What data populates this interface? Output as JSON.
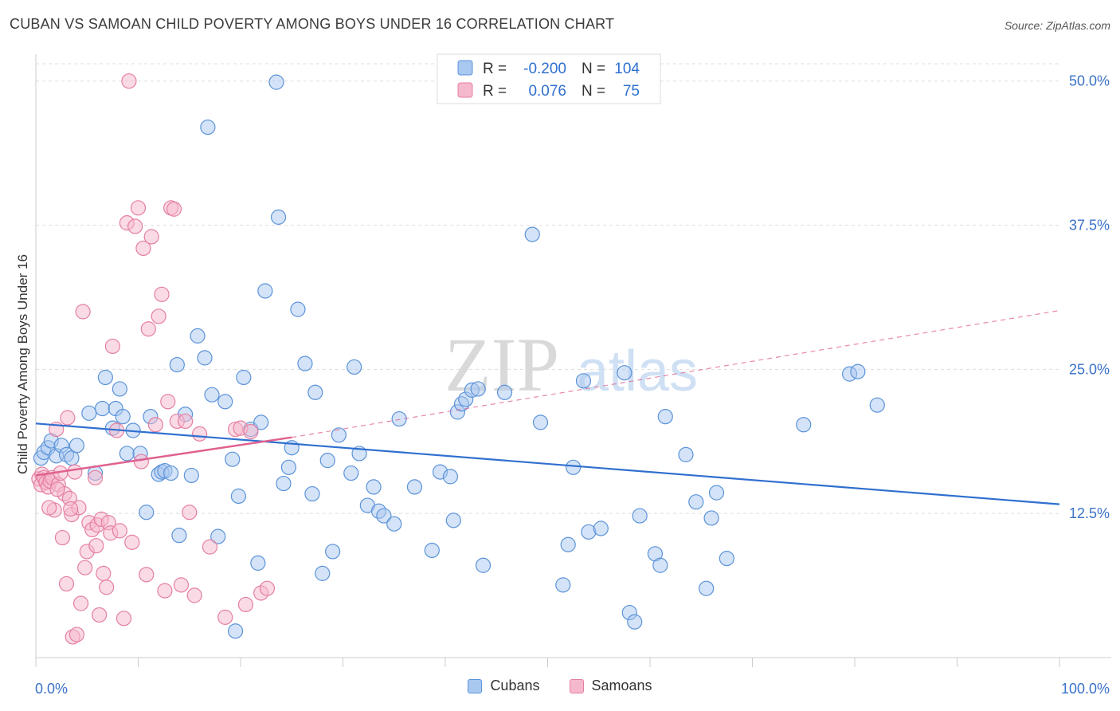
{
  "title": "CUBAN VS SAMOAN CHILD POVERTY AMONG BOYS UNDER 16 CORRELATION CHART",
  "source": "Source: ZipAtlas.com",
  "watermark": {
    "zip": "ZIP",
    "atlas": "atlas"
  },
  "colors": {
    "cubans_fill": "#a9c8f0",
    "cubans_stroke": "#5b93d9",
    "cubans_line": "#2f6fcf",
    "samoans_fill": "#f5b8cc",
    "samoans_stroke": "#e57fa2",
    "samoans_line": "#e0608f",
    "tick_label": "#3a72c8",
    "grid": "#dddddd"
  },
  "legend_top": {
    "rows": [
      {
        "r_label": "R =",
        "r_value": "-0.200",
        "n_label": "N =",
        "n_value": "104"
      },
      {
        "r_label": "R =",
        "r_value": "0.076",
        "n_label": "N =",
        "n_value": "75"
      }
    ]
  },
  "legend_bottom": {
    "cubans": "Cubans",
    "samoans": "Samoans"
  },
  "chart_data": {
    "type": "scatter",
    "title": "CUBAN VS SAMOAN CHILD POVERTY AMONG BOYS UNDER 16 CORRELATION CHART",
    "xlabel": "",
    "ylabel": "Child Poverty Among Boys Under 16",
    "xlim": [
      0,
      100
    ],
    "ylim": [
      0,
      51.5
    ],
    "x_tick_labels": [
      "0.0%",
      "100.0%"
    ],
    "y_ticks": [
      12.5,
      25.0,
      37.5,
      50.0
    ],
    "y_tick_labels": [
      "12.5%",
      "25.0%",
      "37.5%",
      "50.0%"
    ],
    "grid": true,
    "legend_position": "top-center",
    "series": [
      {
        "name": "Cubans",
        "r": -0.2,
        "n": 104,
        "trend": {
          "x": [
            0,
            100
          ],
          "y": [
            20.3,
            13.3
          ],
          "style": "solid"
        },
        "points": [
          [
            0.5,
            17.3
          ],
          [
            0.8,
            17.8
          ],
          [
            1.2,
            18.2
          ],
          [
            1.5,
            18.8
          ],
          [
            2.0,
            17.5
          ],
          [
            2.5,
            18.4
          ],
          [
            3.0,
            17.6
          ],
          [
            3.5,
            17.3
          ],
          [
            4.0,
            18.4
          ],
          [
            5.2,
            21.2
          ],
          [
            5.8,
            16.0
          ],
          [
            6.5,
            21.6
          ],
          [
            6.8,
            24.3
          ],
          [
            7.5,
            19.9
          ],
          [
            7.8,
            21.6
          ],
          [
            8.2,
            23.3
          ],
          [
            8.5,
            20.9
          ],
          [
            8.9,
            17.7
          ],
          [
            9.5,
            19.7
          ],
          [
            10.2,
            17.7
          ],
          [
            10.8,
            12.6
          ],
          [
            11.2,
            20.9
          ],
          [
            12.0,
            15.9
          ],
          [
            12.3,
            16.1
          ],
          [
            12.6,
            16.2
          ],
          [
            13.2,
            16.0
          ],
          [
            13.8,
            25.4
          ],
          [
            14.0,
            10.6
          ],
          [
            14.6,
            21.1
          ],
          [
            15.2,
            15.8
          ],
          [
            15.8,
            27.9
          ],
          [
            16.5,
            26.0
          ],
          [
            16.8,
            46.0
          ],
          [
            17.2,
            22.8
          ],
          [
            17.8,
            10.5
          ],
          [
            18.5,
            22.2
          ],
          [
            19.2,
            17.2
          ],
          [
            19.5,
            2.3
          ],
          [
            19.8,
            14.0
          ],
          [
            20.3,
            24.3
          ],
          [
            21.0,
            19.8
          ],
          [
            21.7,
            8.2
          ],
          [
            22.0,
            20.4
          ],
          [
            22.4,
            31.8
          ],
          [
            23.5,
            49.9
          ],
          [
            23.7,
            38.2
          ],
          [
            24.2,
            15.1
          ],
          [
            24.7,
            16.5
          ],
          [
            25.0,
            18.2
          ],
          [
            25.6,
            30.2
          ],
          [
            26.3,
            25.5
          ],
          [
            27.0,
            14.2
          ],
          [
            27.3,
            23.0
          ],
          [
            28.0,
            7.3
          ],
          [
            28.5,
            17.1
          ],
          [
            29.0,
            9.2
          ],
          [
            29.6,
            19.3
          ],
          [
            30.8,
            16.0
          ],
          [
            31.1,
            25.2
          ],
          [
            31.6,
            17.7
          ],
          [
            32.4,
            13.2
          ],
          [
            33.0,
            14.8
          ],
          [
            33.5,
            12.7
          ],
          [
            34.0,
            12.3
          ],
          [
            35.0,
            11.6
          ],
          [
            35.5,
            20.7
          ],
          [
            37.0,
            14.8
          ],
          [
            38.7,
            9.3
          ],
          [
            39.5,
            16.1
          ],
          [
            40.5,
            15.7
          ],
          [
            40.8,
            11.9
          ],
          [
            41.2,
            21.3
          ],
          [
            41.6,
            22.0
          ],
          [
            42.0,
            22.4
          ],
          [
            42.6,
            23.2
          ],
          [
            43.2,
            23.3
          ],
          [
            43.7,
            8.0
          ],
          [
            45.8,
            23.0
          ],
          [
            48.5,
            36.7
          ],
          [
            49.3,
            20.4
          ],
          [
            51.5,
            6.3
          ],
          [
            52.0,
            9.8
          ],
          [
            52.5,
            16.5
          ],
          [
            53.5,
            24.0
          ],
          [
            54.0,
            10.9
          ],
          [
            55.2,
            11.2
          ],
          [
            57.5,
            24.7
          ],
          [
            58.0,
            3.9
          ],
          [
            58.5,
            3.1
          ],
          [
            59.0,
            12.3
          ],
          [
            60.5,
            9.0
          ],
          [
            61.0,
            8.0
          ],
          [
            61.5,
            20.9
          ],
          [
            63.5,
            17.6
          ],
          [
            64.5,
            13.5
          ],
          [
            65.5,
            6.0
          ],
          [
            66.0,
            12.1
          ],
          [
            66.5,
            14.3
          ],
          [
            67.5,
            8.6
          ],
          [
            75.0,
            20.2
          ],
          [
            79.5,
            24.6
          ],
          [
            80.3,
            24.8
          ],
          [
            82.2,
            21.9
          ]
        ]
      },
      {
        "name": "Samoans",
        "r": 0.076,
        "n": 75,
        "trend": {
          "x": [
            0,
            25
          ],
          "y": [
            15.8,
            19.1
          ],
          "style": "solid",
          "extension": {
            "x": [
              25,
              100
            ],
            "y": [
              19.1,
              30.1
            ],
            "style": "dashed"
          }
        },
        "points": [
          [
            0.3,
            15.5
          ],
          [
            0.5,
            15.0
          ],
          [
            0.6,
            15.9
          ],
          [
            0.8,
            15.6
          ],
          [
            1.0,
            15.2
          ],
          [
            1.2,
            14.8
          ],
          [
            1.4,
            15.3
          ],
          [
            1.6,
            15.6
          ],
          [
            1.8,
            12.8
          ],
          [
            2.0,
            19.8
          ],
          [
            2.2,
            15.0
          ],
          [
            2.4,
            16.0
          ],
          [
            2.6,
            10.4
          ],
          [
            2.8,
            14.2
          ],
          [
            3.0,
            6.4
          ],
          [
            3.1,
            20.8
          ],
          [
            3.3,
            13.8
          ],
          [
            3.5,
            12.4
          ],
          [
            3.6,
            1.8
          ],
          [
            3.8,
            16.1
          ],
          [
            4.0,
            2.0
          ],
          [
            4.2,
            13.0
          ],
          [
            4.4,
            4.7
          ],
          [
            4.6,
            30.0
          ],
          [
            4.8,
            7.8
          ],
          [
            5.0,
            9.2
          ],
          [
            5.2,
            11.7
          ],
          [
            5.5,
            11.1
          ],
          [
            5.8,
            15.6
          ],
          [
            6.0,
            11.5
          ],
          [
            6.2,
            3.7
          ],
          [
            6.4,
            12.0
          ],
          [
            6.6,
            7.3
          ],
          [
            6.9,
            6.1
          ],
          [
            7.1,
            11.7
          ],
          [
            7.3,
            10.8
          ],
          [
            7.5,
            27.0
          ],
          [
            7.9,
            19.7
          ],
          [
            8.2,
            11.0
          ],
          [
            8.6,
            3.4
          ],
          [
            8.9,
            37.7
          ],
          [
            9.1,
            50.0
          ],
          [
            9.4,
            10.0
          ],
          [
            9.7,
            37.4
          ],
          [
            10.0,
            39.0
          ],
          [
            10.3,
            17.0
          ],
          [
            10.5,
            35.5
          ],
          [
            10.8,
            7.2
          ],
          [
            11.0,
            28.5
          ],
          [
            11.3,
            36.5
          ],
          [
            11.7,
            20.2
          ],
          [
            12.0,
            29.6
          ],
          [
            12.3,
            31.5
          ],
          [
            12.6,
            5.8
          ],
          [
            12.9,
            22.2
          ],
          [
            13.2,
            39.0
          ],
          [
            13.5,
            38.9
          ],
          [
            13.8,
            20.5
          ],
          [
            14.2,
            6.3
          ],
          [
            14.6,
            20.5
          ],
          [
            15.0,
            12.6
          ],
          [
            15.5,
            5.4
          ],
          [
            16.0,
            19.4
          ],
          [
            17.0,
            9.6
          ],
          [
            18.5,
            3.5
          ],
          [
            19.5,
            19.8
          ],
          [
            20.0,
            19.9
          ],
          [
            20.5,
            4.6
          ],
          [
            21.0,
            19.6
          ],
          [
            22.0,
            5.6
          ],
          [
            22.6,
            6.0
          ],
          [
            1.3,
            13.0
          ],
          [
            2.1,
            14.6
          ],
          [
            3.4,
            12.9
          ],
          [
            5.9,
            9.7
          ]
        ]
      }
    ]
  }
}
